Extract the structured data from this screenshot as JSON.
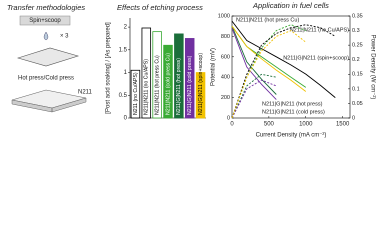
{
  "transfer_panel": {
    "title": "Transfer methodologies",
    "step1": "Spin+scoop",
    "repeat": "× 3",
    "step2": "Hot press/Cold press",
    "membrane": "N211"
  },
  "chart_data": [
    {
      "type": "bar",
      "title": "Effects of etching process",
      "ylabel": "[Post acid soaking] / [As prepared]",
      "categories": [
        "N211 (no Cu/APS)",
        "N211|N211 (no Cu/APS)",
        "N211|N211 (hot press Cu)",
        "N211|N211 (cold press Cu)",
        "N211|G|N211 (hot press)",
        "N211|G|N211 (cold press)",
        "N211|G|N211 (spin+scoop)"
      ],
      "values": [
        1.05,
        1.98,
        1.9,
        1.6,
        1.85,
        1.75,
        1.0
      ],
      "colors": [
        "#ffffff",
        "#ffffff",
        "#ffffff",
        "#3aaa35",
        "#1b6e3a",
        "#7030a0",
        "#f2c200"
      ],
      "edge_colors": [
        "#000000",
        "#000000",
        "#3aaa35",
        "#3aaa35",
        "#1b6e3a",
        "#7030a0",
        "#f2c200"
      ],
      "ylim": [
        0,
        2.2
      ],
      "yticks": [
        0,
        0.5,
        1,
        1.5,
        2
      ]
    },
    {
      "type": "line",
      "title": "Application in fuel cells",
      "xlabel": "Current Density (mA cm⁻²)",
      "ylabel": "Potential (mV)",
      "y2label": "Power Density (W cm⁻²)",
      "x": [
        0,
        200,
        400,
        600,
        800,
        1000,
        1200,
        1400
      ],
      "series": [
        {
          "name": "N211|N211 (hot press Cu)",
          "color": "#3aaa35",
          "values": [
            900,
            700,
            600,
            500,
            400,
            300,
            null,
            null
          ]
        },
        {
          "name": "N211|N211 (no Cu/APS)",
          "color": "#000000",
          "values": [
            950,
            760,
            680,
            600,
            520,
            430,
            320,
            200
          ]
        },
        {
          "name": "N211|G|N211 (hot press)",
          "color": "#1b6e3a",
          "values": [
            900,
            550,
            380,
            230,
            null,
            null,
            null,
            null
          ]
        },
        {
          "name": "N211|G|N211 (cold press)",
          "color": "#7030a0",
          "values": [
            880,
            500,
            330,
            180,
            null,
            null,
            null,
            null
          ]
        },
        {
          "name": "N211|G|N211 (spin+scoop)",
          "color": "#f2c200",
          "values": [
            900,
            700,
            580,
            470,
            370,
            260,
            null,
            null
          ]
        },
        {
          "color": "#3aaa35",
          "axis": "y2",
          "values": [
            0,
            0.14,
            0.24,
            0.3,
            0.32,
            0.3,
            null,
            null
          ]
        },
        {
          "color": "#000000",
          "axis": "y2",
          "values": [
            0,
            0.15,
            0.25,
            0.29,
            0.31,
            0.32,
            0.31,
            0.28
          ]
        },
        {
          "color": "#1b6e3a",
          "axis": "y2",
          "values": [
            0,
            0.11,
            0.15,
            0.14,
            null,
            null,
            null,
            null
          ]
        },
        {
          "color": "#7030a0",
          "axis": "y2",
          "values": [
            0,
            0.1,
            0.13,
            0.11,
            null,
            null,
            null,
            null
          ]
        },
        {
          "color": "#f2c200",
          "axis": "y2",
          "values": [
            0,
            0.14,
            0.23,
            0.28,
            0.3,
            0.26,
            null,
            null
          ]
        }
      ],
      "xlim": [
        0,
        1600
      ],
      "xticks": [
        0,
        500,
        1000,
        1500
      ],
      "ylim": [
        0,
        1000
      ],
      "yticks": [
        0,
        200,
        400,
        600,
        800,
        1000
      ],
      "y2lim": [
        0,
        0.35
      ],
      "y2ticks": [
        0,
        0.05,
        0.1,
        0.15,
        0.2,
        0.25,
        0.3,
        0.35
      ]
    }
  ]
}
